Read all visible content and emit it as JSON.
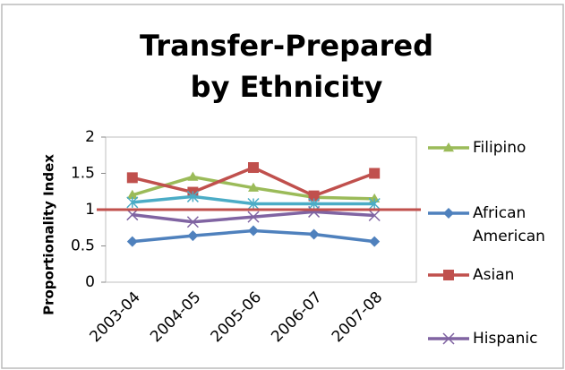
{
  "chart_data": {
    "type": "line",
    "title": "Transfer-Prepared by Ethnicity",
    "y_label": "Proportionality Index",
    "categories": [
      "2003-04",
      "2004-05",
      "2005-06",
      "2006-07",
      "2007-08"
    ],
    "series": [
      {
        "name": "Filipino",
        "color": "#9bbb59",
        "marker": "triangle",
        "values": [
          1.2,
          1.45,
          1.3,
          1.17,
          1.15
        ]
      },
      {
        "name": "African American",
        "color": "#4f81bd",
        "marker": "diamond",
        "values": [
          0.56,
          0.64,
          0.71,
          0.66,
          0.56
        ]
      },
      {
        "name": "Asian",
        "color": "#c0504d",
        "marker": "square",
        "values": [
          1.44,
          1.24,
          1.58,
          1.19,
          1.5
        ]
      },
      {
        "name": "Hispanic",
        "color": "#8064a2",
        "marker": "x",
        "values": [
          0.93,
          0.83,
          0.9,
          0.97,
          0.92
        ]
      },
      {
        "color": "#4bacc6",
        "marker": "star",
        "values": [
          1.1,
          1.18,
          1.08,
          1.08,
          1.08
        ]
      }
    ],
    "reference_line": {
      "value": 1,
      "color": "#c0504d"
    },
    "ylim": [
      0,
      2
    ],
    "yticks": [
      0,
      0.5,
      1,
      1.5,
      2
    ],
    "grid": false,
    "legend": "right"
  }
}
